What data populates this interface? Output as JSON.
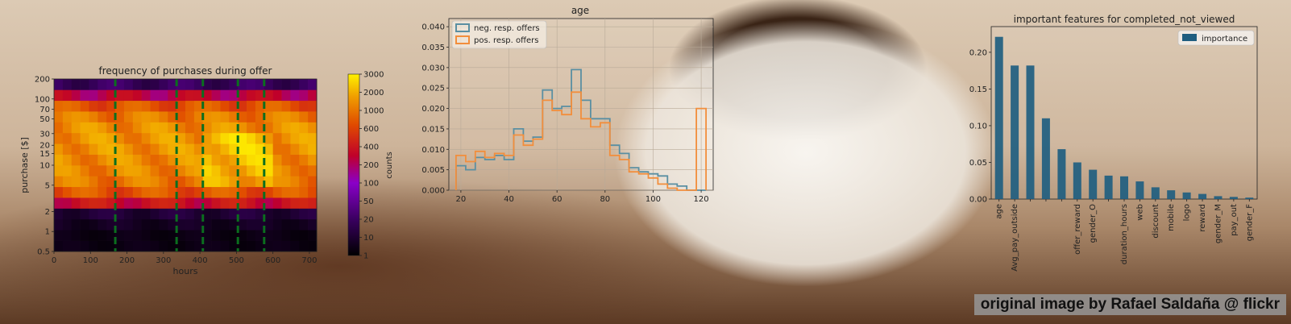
{
  "chart_data": [
    {
      "type": "heatmap",
      "title": "frequency of purchases during offer",
      "xlabel": "hours",
      "ylabel": "purchase [$]",
      "xlim": [
        0,
        720
      ],
      "xticks": [
        "0",
        "100",
        "200",
        "300",
        "400",
        "500",
        "600",
        "700"
      ],
      "y_tick_labels": [
        "0.5",
        "1",
        "2",
        "5",
        "10",
        "15",
        "20",
        "30",
        "50",
        "70",
        "100",
        "200"
      ],
      "x_bins": 30,
      "y_bins": 16,
      "row_counts": [
        0.5,
        0.5,
        1,
        2,
        150,
        500,
        900,
        1100,
        1200,
        1300,
        1300,
        1200,
        900,
        500,
        100,
        5
      ],
      "offer_lines_x": [
        168,
        336,
        408,
        504,
        576
      ],
      "colorbar": {
        "label": "counts",
        "tick_labels": [
          "3000",
          "2000",
          "1000",
          "600",
          "400",
          "200",
          "100",
          "50",
          "20",
          "10",
          "1"
        ]
      }
    },
    {
      "type": "line",
      "title": "age",
      "xlim": [
        15,
        125
      ],
      "ylim": [
        0,
        0.042
      ],
      "xticks": [
        "20",
        "40",
        "60",
        "80",
        "100",
        "120"
      ],
      "yticks": [
        "0.000",
        "0.005",
        "0.010",
        "0.015",
        "0.020",
        "0.025",
        "0.030",
        "0.035",
        "0.040"
      ],
      "bin_edges": [
        18,
        22,
        26,
        30,
        34,
        38,
        42,
        46,
        50,
        54,
        58,
        62,
        66,
        70,
        74,
        78,
        82,
        86,
        90,
        94,
        98,
        102,
        106,
        110,
        114,
        118
      ],
      "series": [
        {
          "name": "neg. resp. offers",
          "color": "#5a8fa2",
          "values": [
            0.006,
            0.005,
            0.008,
            0.0075,
            0.0085,
            0.0075,
            0.015,
            0.012,
            0.013,
            0.0245,
            0.02,
            0.0205,
            0.0295,
            0.022,
            0.0175,
            0.0175,
            0.011,
            0.009,
            0.0055,
            0.0045,
            0.004,
            0.0035,
            0.0015,
            0.001,
            0,
            0
          ]
        },
        {
          "name": "pos. resp. offers",
          "color": "#f28e3c",
          "values": [
            0.0085,
            0.007,
            0.0095,
            0.008,
            0.009,
            0.0085,
            0.0135,
            0.011,
            0.0125,
            0.022,
            0.0195,
            0.0185,
            0.024,
            0.0175,
            0.0155,
            0.0165,
            0.0085,
            0.0075,
            0.0045,
            0.004,
            0.003,
            0.0015,
            0.0005,
            0,
            0,
            0.02
          ]
        }
      ]
    },
    {
      "type": "bar",
      "title": "important features for completed_not_viewed",
      "legend": [
        "importance"
      ],
      "ylim": [
        0,
        0.235
      ],
      "yticks": [
        "0.00",
        "0.05",
        "0.10",
        "0.15",
        "0.20"
      ],
      "categories": [
        "age",
        "Avg_pay_outside",
        "",
        "",
        "",
        "offer_reward",
        "gender_O",
        "",
        "duration_hours",
        "web",
        "discount",
        "mobile",
        "logo",
        "reward",
        "gender_M",
        "pay_out",
        "gender_F"
      ],
      "values": [
        0.221,
        0.182,
        0.182,
        0.11,
        0.068,
        0.05,
        0.04,
        0.032,
        0.031,
        0.024,
        0.016,
        0.012,
        0.009,
        0.007,
        0.004,
        0.003,
        0.002
      ],
      "color": "#1f5e80"
    }
  ],
  "credit": "original image by Rafael Saldaña @ flickr"
}
